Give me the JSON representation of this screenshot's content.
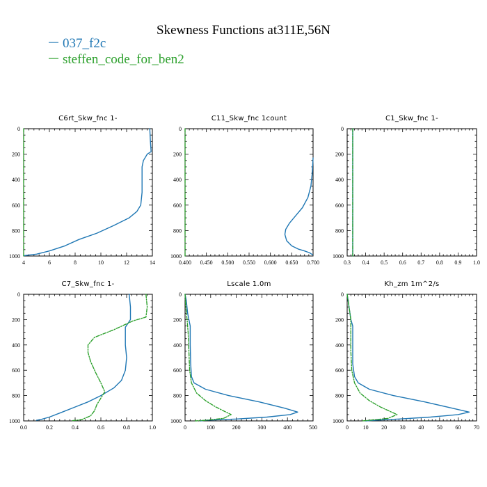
{
  "figure": {
    "title": "Skewness Functions at311E,56N",
    "legend": [
      {
        "label": "037_f2c",
        "color": "#1f77b4",
        "dash": "solid"
      },
      {
        "label": "steffen_code_for_ben2",
        "color": "#2ca02c",
        "dash": "dashdot"
      }
    ]
  },
  "chart_data": [
    {
      "type": "line",
      "title": "C6rt_Skw_fnc  1-",
      "xlim": [
        4,
        14
      ],
      "xticks": [
        4,
        6,
        8,
        10,
        12,
        14
      ],
      "ylim": [
        1000,
        0
      ],
      "yticks": [
        0,
        200,
        400,
        600,
        800,
        1000
      ],
      "series": [
        {
          "color": "#1f77b4",
          "points": [
            [
              13.8,
              0
            ],
            [
              13.85,
              100
            ],
            [
              13.9,
              180
            ],
            [
              13.6,
              200
            ],
            [
              13.3,
              250
            ],
            [
              13.2,
              300
            ],
            [
              13.2,
              400
            ],
            [
              13.2,
              500
            ],
            [
              13.1,
              600
            ],
            [
              12.8,
              650
            ],
            [
              12.2,
              700
            ],
            [
              11,
              760
            ],
            [
              9.7,
              820
            ],
            [
              8.3,
              870
            ],
            [
              7.2,
              920
            ],
            [
              6,
              960
            ],
            [
              5,
              985
            ],
            [
              4.2,
              995
            ],
            [
              4,
              998
            ]
          ]
        },
        {
          "color": "#2ca02c",
          "dash": "dashdot",
          "points": [
            [
              4,
              0
            ],
            [
              4,
              1000
            ]
          ]
        }
      ]
    },
    {
      "type": "line",
      "title": "C11_Skw_fnc  1count",
      "xlim": [
        0.4,
        0.7
      ],
      "xticks": [
        "0.400",
        "0.450",
        "0.500",
        "0.550",
        "0.600",
        "0.650",
        "0.700"
      ],
      "ylim": [
        1000,
        0
      ],
      "yticks": [
        0,
        200,
        400,
        600,
        800,
        1000
      ],
      "series": [
        {
          "color": "#1f77b4",
          "points": [
            [
              0.7,
              230
            ],
            [
              0.698,
              350
            ],
            [
              0.695,
              450
            ],
            [
              0.688,
              540
            ],
            [
              0.675,
              620
            ],
            [
              0.66,
              680
            ],
            [
              0.645,
              740
            ],
            [
              0.636,
              790
            ],
            [
              0.634,
              830
            ],
            [
              0.638,
              880
            ],
            [
              0.65,
              920
            ],
            [
              0.665,
              945
            ],
            [
              0.68,
              960
            ],
            [
              0.692,
              975
            ],
            [
              0.699,
              990
            ]
          ]
        },
        {
          "color": "#2ca02c",
          "dash": "dashdot",
          "points": [
            [
              0.4,
              0
            ],
            [
              0.4,
              1000
            ]
          ]
        }
      ]
    },
    {
      "type": "line",
      "title": "C1_Skw_fnc  1-",
      "xlim": [
        0.3,
        1.0
      ],
      "xticks": [
        "0.3",
        "0.4",
        "0.5",
        "0.6",
        "0.7",
        "0.8",
        "0.9",
        "1.0"
      ],
      "ylim": [
        1000,
        0
      ],
      "yticks": [
        0,
        200,
        400,
        600,
        800,
        1000
      ],
      "series": [
        {
          "color": "#1f77b4",
          "points": [
            [
              0.33,
              0
            ],
            [
              0.33,
              1000
            ]
          ]
        },
        {
          "color": "#2ca02c",
          "dash": "dashdot",
          "points": [
            [
              0.33,
              0
            ],
            [
              0.33,
              1000
            ]
          ]
        }
      ]
    },
    {
      "type": "line",
      "title": "C7_Skw_fnc  1-",
      "xlim": [
        0.0,
        1.0
      ],
      "xticks": [
        "0.0",
        "0.2",
        "0.4",
        "0.6",
        "0.8",
        "1.0"
      ],
      "ylim": [
        1000,
        0
      ],
      "yticks": [
        0,
        200,
        400,
        600,
        800,
        1000
      ],
      "series": [
        {
          "color": "#1f77b4",
          "points": [
            [
              0.82,
              0
            ],
            [
              0.83,
              100
            ],
            [
              0.83,
              200
            ],
            [
              0.81,
              230
            ],
            [
              0.79,
              260
            ],
            [
              0.79,
              400
            ],
            [
              0.8,
              500
            ],
            [
              0.79,
              600
            ],
            [
              0.76,
              680
            ],
            [
              0.7,
              740
            ],
            [
              0.6,
              800
            ],
            [
              0.5,
              850
            ],
            [
              0.4,
              890
            ],
            [
              0.3,
              930
            ],
            [
              0.2,
              970
            ],
            [
              0.13,
              990
            ],
            [
              0.1,
              995
            ]
          ]
        },
        {
          "color": "#2ca02c",
          "dash": "dashdot",
          "points": [
            [
              0.95,
              0
            ],
            [
              0.96,
              100
            ],
            [
              0.95,
              180
            ],
            [
              0.85,
              210
            ],
            [
              0.7,
              280
            ],
            [
              0.55,
              340
            ],
            [
              0.5,
              400
            ],
            [
              0.5,
              460
            ],
            [
              0.52,
              530
            ],
            [
              0.56,
              620
            ],
            [
              0.6,
              700
            ],
            [
              0.63,
              770
            ],
            [
              0.6,
              820
            ],
            [
              0.57,
              870
            ],
            [
              0.55,
              920
            ],
            [
              0.52,
              960
            ],
            [
              0.45,
              990
            ],
            [
              0.38,
              998
            ]
          ]
        }
      ]
    },
    {
      "type": "line",
      "title": "Lscale  1.0m",
      "xlim": [
        0,
        500
      ],
      "xticks": [
        "0",
        "100",
        "200",
        "300",
        "400",
        "500"
      ],
      "ylim": [
        1000,
        0
      ],
      "yticks": [
        0,
        200,
        400,
        600,
        800,
        1000
      ],
      "series": [
        {
          "color": "#1f77b4",
          "points": [
            [
              0,
              0
            ],
            [
              5,
              50
            ],
            [
              10,
              150
            ],
            [
              15,
              200
            ],
            [
              20,
              250
            ],
            [
              20,
              400
            ],
            [
              22,
              550
            ],
            [
              25,
              650
            ],
            [
              35,
              700
            ],
            [
              80,
              750
            ],
            [
              170,
              800
            ],
            [
              290,
              850
            ],
            [
              390,
              900
            ],
            [
              440,
              930
            ],
            [
              410,
              950
            ],
            [
              320,
              970
            ],
            [
              200,
              985
            ],
            [
              80,
              995
            ],
            [
              60,
              1000
            ]
          ]
        },
        {
          "color": "#2ca02c",
          "dash": "dashdot",
          "points": [
            [
              0,
              0
            ],
            [
              3,
              100
            ],
            [
              8,
              200
            ],
            [
              12,
              300
            ],
            [
              15,
              450
            ],
            [
              18,
              600
            ],
            [
              25,
              700
            ],
            [
              45,
              780
            ],
            [
              80,
              840
            ],
            [
              120,
              890
            ],
            [
              160,
              930
            ],
            [
              180,
              950
            ],
            [
              150,
              980
            ],
            [
              80,
              995
            ],
            [
              40,
              1000
            ]
          ]
        }
      ]
    },
    {
      "type": "line",
      "title": "Kh_zm  1m^2/s",
      "xlim": [
        0,
        70
      ],
      "xticks": [
        "0",
        "10",
        "20",
        "30",
        "40",
        "50",
        "60",
        "70"
      ],
      "ylim": [
        1000,
        0
      ],
      "yticks": [
        0,
        200,
        400,
        600,
        800,
        1000
      ],
      "series": [
        {
          "color": "#1f77b4",
          "points": [
            [
              0,
              0
            ],
            [
              1,
              100
            ],
            [
              2,
              200
            ],
            [
              3,
              250
            ],
            [
              3,
              400
            ],
            [
              3,
              550
            ],
            [
              4,
              650
            ],
            [
              6,
              700
            ],
            [
              12,
              750
            ],
            [
              25,
              800
            ],
            [
              42,
              850
            ],
            [
              57,
              900
            ],
            [
              66,
              930
            ],
            [
              60,
              950
            ],
            [
              45,
              970
            ],
            [
              28,
              985
            ],
            [
              15,
              995
            ],
            [
              10,
              1000
            ]
          ]
        },
        {
          "color": "#2ca02c",
          "dash": "dashdot",
          "points": [
            [
              0,
              0
            ],
            [
              1,
              100
            ],
            [
              2,
              200
            ],
            [
              2,
              300
            ],
            [
              2,
              450
            ],
            [
              2.5,
              600
            ],
            [
              4,
              700
            ],
            [
              7,
              780
            ],
            [
              12,
              840
            ],
            [
              18,
              890
            ],
            [
              24,
              930
            ],
            [
              27,
              950
            ],
            [
              22,
              980
            ],
            [
              12,
              995
            ],
            [
              8,
              1000
            ]
          ]
        }
      ]
    }
  ]
}
